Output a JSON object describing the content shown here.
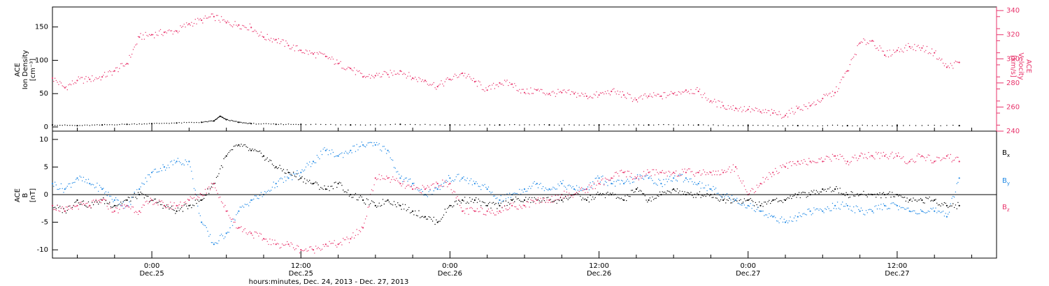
{
  "chart_data": [
    {
      "type": "scatter",
      "panel": "ace-plasma",
      "ylabel_left": [
        "ACE",
        "Ion Density",
        "[cm⁻³]"
      ],
      "ylabel_right": [
        "ACE",
        "Velocity",
        "[km/s]"
      ],
      "y_left_ticks": [
        "0",
        "50",
        "100",
        "150"
      ],
      "y_right_ticks": [
        "240",
        "260",
        "280",
        "300",
        "320",
        "340"
      ],
      "ylim_left": [
        0,
        180
      ],
      "ylim_right": [
        240,
        343
      ],
      "x_unit": "hours since Dec 24, 2013 00:00",
      "xlim": [
        16,
        92
      ],
      "series": [
        {
          "name": "Velocity",
          "axis": "right",
          "color": "#e8336b",
          "x": [
            16,
            17,
            18,
            19,
            20,
            21,
            22,
            23,
            24,
            25,
            26,
            27,
            28,
            29,
            30,
            31,
            32,
            33,
            34,
            35,
            36,
            37,
            38,
            39,
            40,
            41,
            42,
            43,
            44,
            45,
            46,
            47,
            48,
            49,
            50,
            51,
            52,
            53,
            54,
            55,
            56,
            57,
            58,
            59,
            60,
            61,
            62,
            63,
            64,
            65,
            66,
            67,
            68,
            69,
            70,
            71,
            72,
            73,
            74,
            75,
            76,
            77,
            78,
            79,
            80,
            81,
            82,
            83,
            84,
            85,
            86,
            87,
            88,
            89
          ],
          "y": [
            284,
            276,
            282,
            283,
            285,
            290,
            296,
            318,
            320,
            322,
            323,
            329,
            332,
            335,
            330,
            328,
            326,
            318,
            316,
            311,
            307,
            304,
            302,
            296,
            292,
            285,
            286,
            287,
            290,
            284,
            282,
            277,
            283,
            288,
            281,
            274,
            280,
            279,
            272,
            274,
            271,
            272,
            271,
            269,
            270,
            273,
            270,
            266,
            269,
            269,
            271,
            274,
            273,
            265,
            261,
            259,
            258,
            256,
            255,
            253,
            259,
            261,
            267,
            272,
            290,
            313,
            315,
            303,
            307,
            310,
            309,
            305,
            293,
            297
          ]
        },
        {
          "name": "Ion Density",
          "axis": "left",
          "color": "#000000",
          "x": [
            16,
            18,
            20,
            22,
            24,
            26,
            28,
            29,
            29.5,
            30,
            31,
            32,
            34,
            36,
            40,
            44,
            48,
            52,
            56,
            60,
            64,
            68,
            72,
            76,
            80,
            84,
            89
          ],
          "y": [
            3,
            2,
            3,
            4,
            5,
            6,
            7,
            9,
            16,
            11,
            7,
            5,
            4,
            4,
            3,
            4,
            3,
            3,
            3,
            3,
            3,
            3,
            2,
            2,
            2,
            2,
            2
          ]
        }
      ]
    },
    {
      "type": "scatter",
      "panel": "ace-magnetic-field",
      "ylabel_left": [
        "ACE",
        "B",
        "[nT]"
      ],
      "y_left_ticks": [
        "-10",
        "-5",
        "0",
        "5",
        "10"
      ],
      "ylim": [
        -11.5,
        11.5
      ],
      "x_unit": "hours since Dec 24, 2013 00:00",
      "xlim": [
        16,
        92
      ],
      "legend": [
        "Bx",
        "By",
        "Bz"
      ],
      "series": [
        {
          "name": "Bx",
          "color": "#000000",
          "x": [
            16,
            17,
            18,
            19,
            20,
            21,
            22,
            23,
            24,
            25,
            26,
            27,
            28,
            29,
            30,
            31,
            32,
            33,
            34,
            35,
            36,
            37,
            38,
            39,
            40,
            41,
            42,
            43,
            44,
            45,
            46,
            47,
            48,
            49,
            50,
            51,
            52,
            53,
            54,
            55,
            56,
            57,
            58,
            59,
            60,
            61,
            62,
            63,
            64,
            65,
            66,
            67,
            68,
            69,
            70,
            71,
            72,
            73,
            74,
            75,
            76,
            77,
            78,
            79,
            80,
            81,
            82,
            83,
            84,
            85,
            86,
            87,
            88,
            89
          ],
          "y": [
            -2,
            -3,
            -1,
            -2,
            -1,
            -2,
            -1,
            0,
            -1,
            -2,
            -3,
            -2,
            -1,
            2,
            7,
            9,
            8,
            7,
            5,
            4,
            3,
            2,
            1,
            2,
            0,
            -1,
            -2,
            -1,
            -2,
            -3,
            -4,
            -5,
            -2,
            -1,
            -1,
            -2,
            -2,
            -1,
            -1,
            -1,
            -1,
            -1,
            0,
            -1,
            0,
            0,
            -1,
            1,
            -1,
            0,
            1,
            0,
            0,
            0,
            -1,
            -1,
            -1,
            -2,
            -1,
            -1,
            0,
            0,
            1,
            1,
            0,
            0,
            0,
            0,
            0,
            -1,
            -1,
            -1,
            -2,
            -2
          ]
        },
        {
          "name": "By",
          "color": "#1e88e5",
          "x": [
            16,
            17,
            18,
            19,
            20,
            21,
            22,
            23,
            24,
            25,
            26,
            27,
            28,
            29,
            30,
            31,
            32,
            33,
            34,
            35,
            36,
            37,
            38,
            39,
            40,
            41,
            42,
            43,
            44,
            45,
            46,
            47,
            48,
            49,
            50,
            51,
            52,
            53,
            54,
            55,
            56,
            57,
            58,
            59,
            60,
            61,
            62,
            63,
            64,
            65,
            66,
            67,
            68,
            69,
            70,
            71,
            72,
            73,
            74,
            75,
            76,
            77,
            78,
            79,
            80,
            81,
            82,
            83,
            84,
            85,
            86,
            87,
            88,
            89
          ],
          "y": [
            2,
            1,
            3,
            2,
            1,
            -1,
            -2,
            1,
            4,
            5,
            6,
            6,
            -5,
            -9,
            -7,
            -3,
            -1,
            0,
            2,
            3,
            4,
            6,
            8,
            7,
            8,
            9,
            9,
            8,
            3,
            2,
            0,
            1,
            3,
            3,
            2,
            1,
            -1,
            0,
            1,
            2,
            1,
            2,
            1,
            1,
            3,
            2,
            2,
            3,
            3,
            2,
            3,
            3,
            2,
            1,
            0,
            -1,
            -2,
            -3,
            -4,
            -5,
            -4,
            -3,
            -3,
            -2,
            -2,
            -3,
            -3,
            -2,
            -2,
            -3,
            -3,
            -3,
            -4,
            3
          ]
        },
        {
          "name": "Bz",
          "color": "#e8336b",
          "x": [
            16,
            17,
            18,
            19,
            20,
            21,
            22,
            23,
            24,
            25,
            26,
            27,
            28,
            29,
            30,
            31,
            32,
            33,
            34,
            35,
            36,
            37,
            38,
            39,
            40,
            41,
            42,
            43,
            44,
            45,
            46,
            47,
            48,
            49,
            50,
            51,
            52,
            53,
            54,
            55,
            56,
            57,
            58,
            59,
            60,
            61,
            62,
            63,
            64,
            65,
            66,
            67,
            68,
            69,
            70,
            71,
            72,
            73,
            74,
            75,
            76,
            77,
            78,
            79,
            80,
            81,
            82,
            83,
            84,
            85,
            86,
            87,
            88,
            89
          ],
          "y": [
            -2,
            -3,
            -2,
            -2,
            -1,
            -3,
            -2,
            -3,
            -1,
            -2,
            -2,
            -1,
            0,
            2,
            -3,
            -6,
            -7,
            -8,
            -9,
            -9,
            -10,
            -10,
            -9,
            -9,
            -8,
            -6,
            3,
            3,
            2,
            1,
            1,
            2,
            2,
            -3,
            -3,
            -3,
            -3,
            -2,
            -2,
            -1,
            -1,
            0,
            0,
            1,
            2,
            3,
            4,
            3,
            4,
            4,
            4,
            4,
            4,
            4,
            4,
            5,
            0,
            2,
            4,
            5,
            6,
            6,
            6,
            7,
            6,
            7,
            7,
            7,
            7,
            6,
            7,
            6,
            7,
            6
          ]
        }
      ]
    }
  ],
  "x_ticks": [
    {
      "hour": 24,
      "time": "0:00",
      "date": "Dec.25"
    },
    {
      "hour": 36,
      "time": "12:00",
      "date": "Dec.25"
    },
    {
      "hour": 48,
      "time": "0:00",
      "date": "Dec.26"
    },
    {
      "hour": 60,
      "time": "12:00",
      "date": "Dec.26"
    },
    {
      "hour": 72,
      "time": "0:00",
      "date": "Dec.27"
    },
    {
      "hour": 84,
      "time": "12:00",
      "date": "Dec.27"
    }
  ],
  "xlabel": "hours:minutes, Dec. 24, 2013 - Dec. 27, 2013",
  "legend_labels": {
    "bx": {
      "base": "B",
      "sub": "x",
      "color": "#000000"
    },
    "by": {
      "base": "B",
      "sub": "y",
      "color": "#1e88e5"
    },
    "bz": {
      "base": "B",
      "sub": "z",
      "color": "#e8336b"
    }
  }
}
